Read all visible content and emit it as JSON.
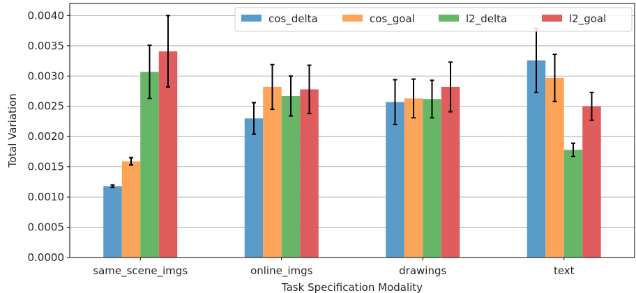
{
  "chart_data": {
    "type": "bar",
    "xlabel": "Task Specification Modality",
    "ylabel": "Total Variation",
    "categories": [
      "same_scene_imgs",
      "online_imgs",
      "drawings",
      "text"
    ],
    "ylim": [
      0,
      0.0042
    ],
    "yticks": [
      "0.0000",
      "0.0005",
      "0.0010",
      "0.0015",
      "0.0020",
      "0.0025",
      "0.0030",
      "0.0035",
      "0.0040"
    ],
    "grid": "horizontal",
    "legend_position": "top-right",
    "series": [
      {
        "name": "cos_delta",
        "color": "#5b9bc9",
        "values": [
          0.00118,
          0.0023,
          0.00257,
          0.00326
        ],
        "errors": [
          2e-05,
          0.00026,
          0.00037,
          0.00053
        ]
      },
      {
        "name": "cos_goal",
        "color": "#fca45a",
        "values": [
          0.00159,
          0.00282,
          0.00263,
          0.00297
        ],
        "errors": [
          6e-05,
          0.00037,
          0.00032,
          0.00039
        ]
      },
      {
        "name": "l2_delta",
        "color": "#67b667",
        "values": [
          0.00307,
          0.00267,
          0.00262,
          0.00178
        ],
        "errors": [
          0.00044,
          0.00033,
          0.00031,
          0.00011
        ]
      },
      {
        "name": "l2_goal",
        "color": "#e05d5e",
        "values": [
          0.00341,
          0.00278,
          0.00282,
          0.0025
        ],
        "errors": [
          0.00059,
          0.0004,
          0.00041,
          0.00023
        ]
      }
    ]
  }
}
